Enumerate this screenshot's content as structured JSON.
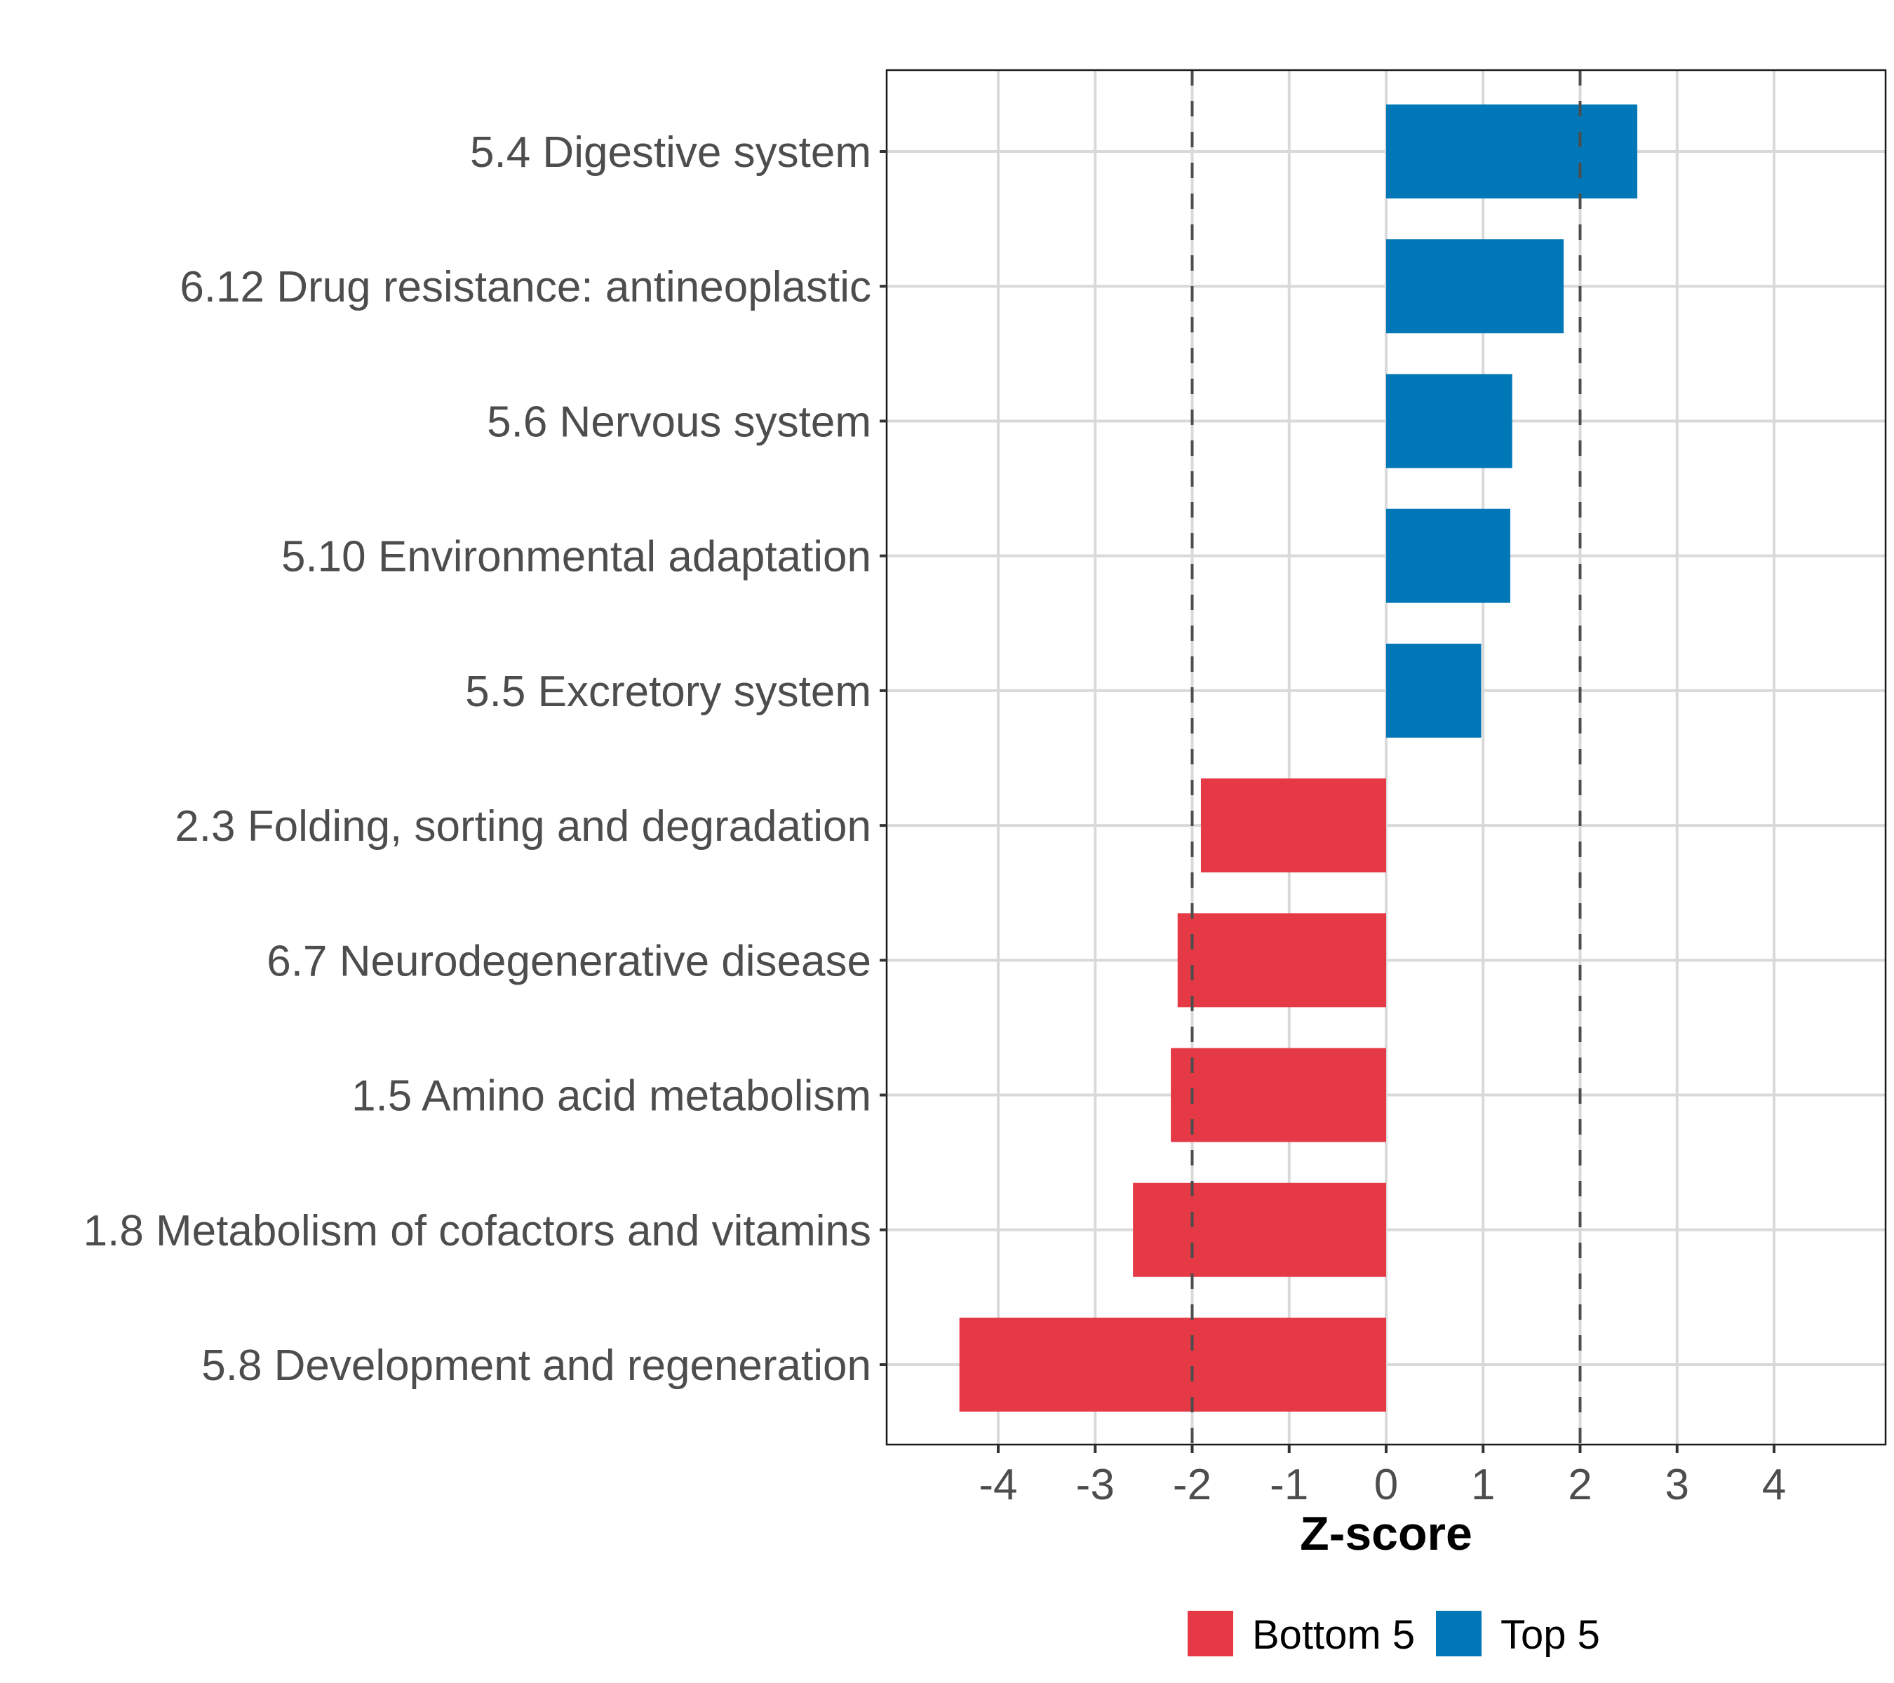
{
  "chart_data": {
    "type": "bar",
    "orientation": "horizontal",
    "title": "",
    "xlabel": "Z-score",
    "ylabel": "",
    "xlim": [
      -5.15,
      5.15
    ],
    "xticks": [
      -4,
      -3,
      -2,
      -1,
      0,
      1,
      2,
      3,
      4
    ],
    "xtick_labels": [
      "-4",
      "-3",
      "-2",
      "-1",
      "0",
      "1",
      "2",
      "3",
      "4"
    ],
    "reference_lines": [
      -2,
      2
    ],
    "grid": true,
    "legend_position": "bottom",
    "categories": [
      "5.4 Digestive system",
      "6.12 Drug resistance: antineoplastic",
      "5.6 Nervous system",
      "5.10 Environmental adaptation",
      "5.5 Excretory system",
      "2.3 Folding, sorting and degradation",
      "6.7 Neurodegenerative disease",
      "1.5 Amino acid metabolism",
      "1.8 Metabolism of cofactors and vitamins",
      "5.8 Development and regeneration"
    ],
    "values": [
      2.59,
      1.83,
      1.3,
      1.28,
      0.98,
      -1.91,
      -2.15,
      -2.22,
      -2.61,
      -4.4
    ],
    "groups": [
      "Top 5",
      "Top 5",
      "Top 5",
      "Top 5",
      "Top 5",
      "Bottom 5",
      "Bottom 5",
      "Bottom 5",
      "Bottom 5",
      "Bottom 5"
    ],
    "legend": [
      {
        "name": "Bottom 5",
        "color": "#E63946"
      },
      {
        "name": "Top 5",
        "color": "#0077B6"
      }
    ]
  }
}
